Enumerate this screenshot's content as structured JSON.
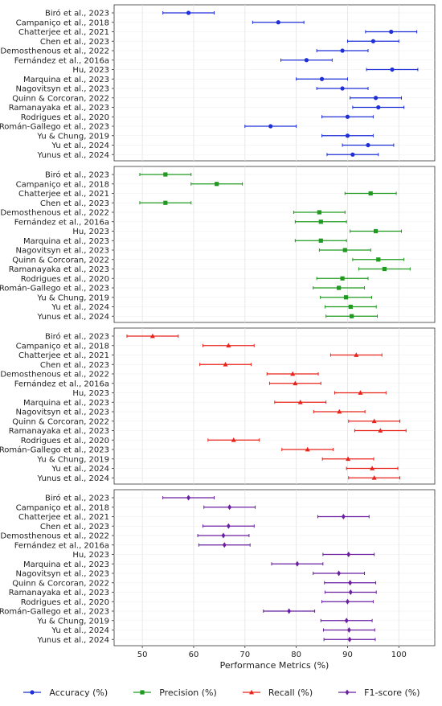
{
  "chart_data": {
    "type": "scatter",
    "subtype": "forest-plot",
    "xlabel": "Performance Metrics (%)",
    "xlim": [
      44.5,
      107
    ],
    "xticks": [
      50,
      60,
      70,
      80,
      90,
      100
    ],
    "grid": true,
    "legend_position": "bottom-center",
    "studies": [
      "Biró et al., 2023",
      "Campaniço et al., 2018",
      "Chatterjee et al., 2021",
      "Chen et al., 2023",
      "Demosthenous et al., 2022",
      "Fernández et al., 2016a",
      "Hu, 2023",
      "Marquina et al., 2023",
      "Nagovitsyn et al., 2023",
      "Quinn & Corcoran, 2022",
      "Ramanayaka et al., 2023",
      "Rodrigues et al., 2020",
      "Román-Gallego et al., 2023",
      "Yu & Chung, 2019",
      "Yu et al., 2024",
      "Yunus et al., 2024"
    ],
    "series": [
      {
        "name": "Accuracy (%)",
        "color": "#1f2fd6",
        "marker": "circle",
        "points": [
          {
            "value": 59.0,
            "ci": [
              54.0,
              64.0
            ]
          },
          {
            "value": 76.5,
            "ci": [
              71.5,
              81.5
            ]
          },
          {
            "value": 98.5,
            "ci": [
              93.5,
              103.5
            ]
          },
          {
            "value": 95.0,
            "ci": [
              90.0,
              100.0
            ]
          },
          {
            "value": 89.0,
            "ci": [
              84.0,
              94.0
            ]
          },
          {
            "value": 82.0,
            "ci": [
              77.0,
              87.0
            ]
          },
          {
            "value": 98.7,
            "ci": [
              93.7,
              103.7
            ]
          },
          {
            "value": 85.0,
            "ci": [
              80.0,
              90.0
            ]
          },
          {
            "value": 89.0,
            "ci": [
              84.0,
              94.0
            ]
          },
          {
            "value": 95.5,
            "ci": [
              90.5,
              100.5
            ]
          },
          {
            "value": 96.0,
            "ci": [
              91.0,
              101.0
            ]
          },
          {
            "value": 90.0,
            "ci": [
              85.0,
              95.0
            ]
          },
          {
            "value": 75.0,
            "ci": [
              70.0,
              80.0
            ]
          },
          {
            "value": 90.0,
            "ci": [
              85.0,
              95.0
            ]
          },
          {
            "value": 94.0,
            "ci": [
              89.0,
              99.0
            ]
          },
          {
            "value": 91.0,
            "ci": [
              86.0,
              96.0
            ]
          }
        ]
      },
      {
        "name": "Precision (%)",
        "color": "#1e9a1e",
        "marker": "square",
        "points": [
          {
            "value": 54.5,
            "ci": [
              49.5,
              59.5
            ]
          },
          {
            "value": 64.5,
            "ci": [
              59.5,
              69.5
            ]
          },
          {
            "value": 94.5,
            "ci": [
              89.5,
              99.5
            ]
          },
          {
            "value": 54.5,
            "ci": [
              49.5,
              59.5
            ]
          },
          {
            "value": 84.5,
            "ci": [
              79.5,
              89.5
            ]
          },
          {
            "value": 84.8,
            "ci": [
              79.8,
              89.8
            ]
          },
          {
            "value": 95.5,
            "ci": [
              90.5,
              100.5
            ]
          },
          {
            "value": 84.8,
            "ci": [
              79.8,
              89.8
            ]
          },
          {
            "value": 89.5,
            "ci": [
              84.5,
              94.5
            ]
          },
          {
            "value": 96.0,
            "ci": [
              91.0,
              101.0
            ]
          },
          {
            "value": 97.2,
            "ci": [
              92.2,
              102.2
            ]
          },
          {
            "value": 89.0,
            "ci": [
              84.0,
              94.0
            ]
          },
          {
            "value": 88.3,
            "ci": [
              83.3,
              93.3
            ]
          },
          {
            "value": 89.7,
            "ci": [
              84.7,
              94.7
            ]
          },
          {
            "value": 90.6,
            "ci": [
              85.6,
              95.6
            ]
          },
          {
            "value": 90.8,
            "ci": [
              85.8,
              95.8
            ]
          }
        ]
      },
      {
        "name": "Recall (%)",
        "color": "#e8231a",
        "marker": "triangle",
        "points": [
          {
            "value": 52.0,
            "ci": [
              47.0,
              57.0
            ]
          },
          {
            "value": 66.8,
            "ci": [
              61.8,
              71.8
            ]
          },
          {
            "value": 91.7,
            "ci": [
              86.7,
              96.7
            ]
          },
          {
            "value": 66.2,
            "ci": [
              61.2,
              71.2
            ]
          },
          {
            "value": 79.3,
            "ci": [
              74.3,
              84.3
            ]
          },
          {
            "value": 79.8,
            "ci": [
              74.8,
              84.8
            ]
          },
          {
            "value": 92.5,
            "ci": [
              87.5,
              97.5
            ]
          },
          {
            "value": 80.8,
            "ci": [
              75.8,
              85.8
            ]
          },
          {
            "value": 88.4,
            "ci": [
              83.4,
              93.4
            ]
          },
          {
            "value": 95.2,
            "ci": [
              90.2,
              100.2
            ]
          },
          {
            "value": 96.4,
            "ci": [
              91.4,
              101.4
            ]
          },
          {
            "value": 67.8,
            "ci": [
              62.8,
              72.8
            ]
          },
          {
            "value": 82.2,
            "ci": [
              77.2,
              87.2
            ]
          },
          {
            "value": 90.1,
            "ci": [
              85.1,
              95.1
            ]
          },
          {
            "value": 94.8,
            "ci": [
              89.8,
              99.8
            ]
          },
          {
            "value": 95.2,
            "ci": [
              90.2,
              100.2
            ]
          }
        ]
      },
      {
        "name": "F1-score (%)",
        "color": "#6a1fa0",
        "marker": "diamond",
        "points": [
          {
            "value": 59.0,
            "ci": [
              54.0,
              64.0
            ]
          },
          {
            "value": 67.0,
            "ci": [
              62.0,
              72.0
            ]
          },
          {
            "value": 89.2,
            "ci": [
              84.2,
              94.2
            ]
          },
          {
            "value": 66.8,
            "ci": [
              61.8,
              71.8
            ]
          },
          {
            "value": 65.8,
            "ci": [
              60.8,
              70.8
            ]
          },
          {
            "value": 66.0,
            "ci": [
              61.0,
              71.0
            ]
          },
          {
            "value": 90.2,
            "ci": [
              85.2,
              95.2
            ]
          },
          {
            "value": 80.2,
            "ci": [
              75.2,
              85.2
            ]
          },
          {
            "value": 88.3,
            "ci": [
              83.3,
              93.3
            ]
          },
          {
            "value": 90.5,
            "ci": [
              85.5,
              95.5
            ]
          },
          {
            "value": 90.6,
            "ci": [
              85.6,
              95.6
            ]
          },
          {
            "value": 90.0,
            "ci": [
              85.0,
              95.0
            ]
          },
          {
            "value": 78.6,
            "ci": [
              73.6,
              83.6
            ]
          },
          {
            "value": 89.8,
            "ci": [
              84.8,
              94.8
            ]
          },
          {
            "value": 90.3,
            "ci": [
              85.3,
              95.3
            ]
          },
          {
            "value": 90.4,
            "ci": [
              85.4,
              95.4
            ]
          }
        ]
      }
    ]
  }
}
